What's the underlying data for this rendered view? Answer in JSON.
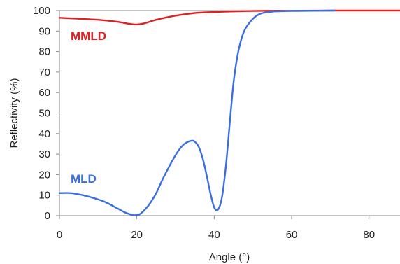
{
  "chart_data": {
    "type": "line",
    "title": "",
    "xlabel": "Angle (°)",
    "ylabel": "Reflectivity (%)",
    "xlim": [
      0,
      88
    ],
    "ylim": [
      0,
      100
    ],
    "xticks": [
      0,
      20,
      40,
      60,
      80
    ],
    "yticks": [
      0,
      10,
      20,
      30,
      40,
      50,
      60,
      70,
      80,
      90,
      100
    ],
    "grid": false,
    "series": [
      {
        "name": "MMLD",
        "color": "#e02020",
        "x": [
          0,
          5,
          10,
          15,
          18,
          20,
          22,
          25,
          30,
          35,
          40,
          45,
          50,
          55,
          60,
          70,
          80,
          88
        ],
        "y": [
          96.5,
          96,
          95.5,
          94.5,
          93.5,
          93.2,
          93.8,
          95.5,
          97.5,
          98.8,
          99.3,
          99.6,
          99.8,
          99.9,
          99.9,
          100,
          100,
          100
        ]
      },
      {
        "name": "MLD",
        "color": "#3a6fe0",
        "x": [
          0,
          3,
          6,
          9,
          12,
          15,
          17,
          19,
          20,
          21,
          23,
          25,
          27,
          30,
          32,
          34,
          35,
          36,
          37,
          38,
          39,
          40,
          41,
          42,
          43,
          44,
          45,
          46,
          47,
          48,
          50,
          52,
          55,
          60,
          65,
          71
        ],
        "y": [
          11,
          11,
          10,
          8.5,
          6.5,
          3.5,
          1.5,
          0.3,
          0.3,
          1,
          5,
          11,
          19,
          29.5,
          34.5,
          36.5,
          36,
          33.5,
          28,
          20,
          11,
          4,
          3,
          9,
          24,
          45,
          65,
          78,
          86,
          91,
          96,
          98.5,
          99.5,
          99.8,
          99.9,
          100
        ]
      }
    ]
  }
}
